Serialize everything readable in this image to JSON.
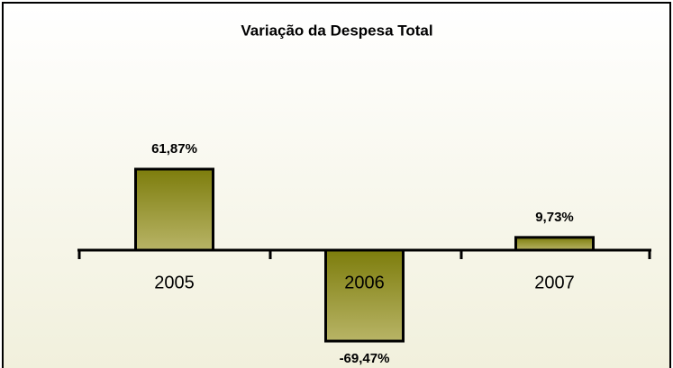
{
  "chart_data": {
    "type": "bar",
    "title": "Variação da Despesa Total",
    "categories": [
      "2005",
      "2006",
      "2007"
    ],
    "values": [
      61.87,
      -69.47,
      9.73
    ],
    "value_labels": [
      "61,87%",
      "-69,47%",
      "9,73%"
    ],
    "color": "#8a8a1e"
  }
}
